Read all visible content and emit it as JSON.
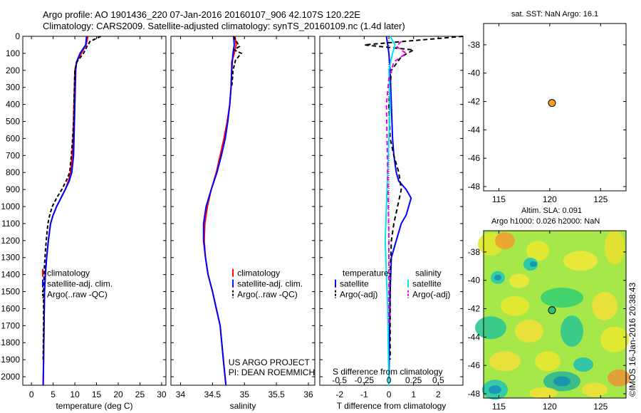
{
  "header": {
    "line1": "Argo profile: AO 1901436_220 07-Jan-2016 20160107_906 42.107S 120.22E",
    "line2": "Climatology: CARS2009. Satellite-adjusted climatology: synTS_20160109.nc (1.4d later)"
  },
  "colors": {
    "climatology": "#ff0000",
    "satellite": "#0000ff",
    "argo": "#000000",
    "cyan": "#00e5ee",
    "magenta": "#ee00ee",
    "marker": "#f4a020"
  },
  "chart_data": [
    {
      "id": "temperature",
      "type": "line",
      "xlabel": "temperature (deg C)",
      "ylabel": "",
      "xlim": [
        -2,
        31
      ],
      "ylim": [
        2050,
        0
      ],
      "xticks": [
        0,
        5,
        10,
        15,
        20,
        25,
        30
      ],
      "yticks": [
        0,
        100,
        200,
        300,
        400,
        500,
        600,
        700,
        800,
        900,
        1000,
        1100,
        1200,
        1300,
        1400,
        1500,
        1600,
        1700,
        1800,
        1900,
        2000
      ],
      "legend": [
        "climatology",
        "satellite-adj. clim.",
        "Argo(..raw -QC)"
      ],
      "series": [
        {
          "name": "climatology",
          "color": "#ff0000",
          "dash": "",
          "x": [
            13.0,
            12.6,
            11.5,
            10.4,
            10.0,
            9.9,
            9.8,
            9.7,
            9.6,
            9.4,
            9.0,
            8.5,
            7.8,
            6.8,
            5.8,
            5.0,
            4.4,
            3.9,
            3.5,
            3.2,
            3.0,
            2.9,
            2.8,
            2.7
          ],
          "y": [
            0,
            50,
            100,
            150,
            200,
            300,
            400,
            500,
            600,
            700,
            800,
            850,
            900,
            950,
            1000,
            1050,
            1100,
            1200,
            1300,
            1400,
            1500,
            1700,
            1900,
            2050
          ]
        },
        {
          "name": "satellite-adj. clim.",
          "color": "#0000ff",
          "dash": "",
          "x": [
            12.7,
            12.5,
            11.2,
            10.4,
            10.2,
            10.1,
            10.0,
            9.9,
            9.8,
            9.7,
            9.3,
            8.7,
            7.8,
            6.8,
            5.8,
            5.0,
            4.4,
            3.9,
            3.5,
            3.2,
            3.0,
            2.9,
            2.8,
            2.7
          ],
          "y": [
            0,
            50,
            100,
            150,
            200,
            300,
            400,
            500,
            600,
            700,
            800,
            850,
            900,
            950,
            1000,
            1050,
            1100,
            1200,
            1300,
            1400,
            1500,
            1700,
            1900,
            2050
          ]
        },
        {
          "name": "Argo(..raw -QC)",
          "color": "#000000",
          "dash": "5,3",
          "x": [
            16.0,
            13.5,
            12.8,
            12.0,
            10.5,
            10.0,
            9.9,
            9.8,
            9.7,
            9.5,
            9.2,
            8.8,
            8.0,
            7.0,
            5.8,
            4.8,
            4.2,
            3.8,
            3.4,
            3.1,
            2.9,
            2.8,
            2.8,
            2.7
          ],
          "y": [
            0,
            30,
            60,
            100,
            150,
            200,
            300,
            400,
            500,
            600,
            700,
            800,
            850,
            900,
            950,
            1000,
            1050,
            1100,
            1200,
            1300,
            1400,
            1500,
            1700,
            1900
          ]
        }
      ]
    },
    {
      "id": "salinity",
      "type": "line",
      "xlabel": "salinity",
      "ylabel": "",
      "xlim": [
        33.85,
        36.1
      ],
      "ylim": [
        2050,
        0
      ],
      "xticks": [
        34,
        34.5,
        35,
        35.5,
        36
      ],
      "legend": [
        "climatology",
        "satellite-adj. clim.",
        "Argo(..raw -QC)"
      ],
      "annotation": [
        "US ARGO PROJECT",
        "PI: DEAN ROEMMICH"
      ],
      "series": [
        {
          "name": "climatology",
          "color": "#ff0000",
          "dash": "",
          "x": [
            34.85,
            34.87,
            34.84,
            34.8,
            34.8,
            34.79,
            34.77,
            34.73,
            34.68,
            34.62,
            34.56,
            34.48,
            34.42,
            34.38,
            34.37,
            34.39,
            34.43,
            34.5,
            34.56,
            34.62,
            34.67,
            34.71
          ],
          "y": [
            0,
            50,
            100,
            150,
            200,
            300,
            400,
            500,
            600,
            700,
            800,
            900,
            1000,
            1100,
            1200,
            1300,
            1400,
            1500,
            1600,
            1700,
            1900,
            2050
          ]
        },
        {
          "name": "satellite-adj. clim.",
          "color": "#0000ff",
          "dash": "",
          "x": [
            34.83,
            34.84,
            34.82,
            34.81,
            34.8,
            34.79,
            34.77,
            34.74,
            34.7,
            34.64,
            34.57,
            34.48,
            34.4,
            34.36,
            34.36,
            34.39,
            34.43,
            34.5,
            34.56,
            34.62,
            34.67,
            34.71
          ],
          "y": [
            0,
            50,
            100,
            150,
            200,
            300,
            400,
            500,
            600,
            700,
            800,
            900,
            1000,
            1100,
            1200,
            1300,
            1400,
            1500,
            1600,
            1700,
            1900,
            2050
          ]
        },
        {
          "name": "Argo(..raw -QC)",
          "color": "#000000",
          "dash": "5,3",
          "x": [
            34.83,
            34.92,
            34.84,
            34.95,
            34.86,
            34.82,
            34.81,
            34.8
          ],
          "y": [
            0,
            60,
            80,
            100,
            140,
            200,
            260,
            300
          ]
        }
      ]
    },
    {
      "id": "difference",
      "type": "line",
      "xlabel": "T difference from climatology",
      "top_label": "S difference from climatology",
      "xlim": [
        -2.8,
        3.0
      ],
      "ylim": [
        2050,
        0
      ],
      "xticks": [
        -2,
        -1,
        0,
        1,
        2
      ],
      "top_ticks": [
        "-0.5",
        "-0.25",
        "0",
        "0.25",
        "0.5"
      ],
      "legend_headers": [
        "temperature",
        "salinity"
      ],
      "legend": [
        "satellite",
        "Argo(-adj)",
        "satellite",
        "Argo(-adj)"
      ],
      "series": [
        {
          "name": "temperature satellite",
          "color": "#0000ff",
          "dash": "",
          "x": [
            -0.1,
            0.0,
            0.05,
            0.1,
            0.15,
            0.2,
            0.3,
            0.4,
            0.7,
            0.9,
            0.8,
            0.7,
            0.5,
            0.3,
            0.1,
            0.05,
            0.0
          ],
          "y": [
            0,
            100,
            200,
            400,
            600,
            700,
            800,
            850,
            900,
            950,
            1000,
            1050,
            1100,
            1200,
            1300,
            1500,
            2050
          ]
        },
        {
          "name": "temperature Argo(-adj)",
          "color": "#000000",
          "dash": "6,4",
          "x": [
            3.0,
            -1.0,
            1.0,
            0.5,
            0.1,
            0.0,
            0.05,
            0.2,
            0.4,
            0.5,
            0.35,
            0.2,
            0.1,
            0.05,
            0.05,
            0.05
          ],
          "y": [
            0,
            50,
            80,
            120,
            200,
            400,
            600,
            700,
            800,
            900,
            1000,
            1100,
            1200,
            1400,
            1600,
            1900
          ]
        },
        {
          "name": "salinity satellite",
          "color": "#00e5ee",
          "dash": "",
          "x": [
            0.05,
            0.25,
            0.15,
            0.0,
            0.05,
            0.0,
            -0.05,
            -0.1,
            -0.15,
            -0.1,
            -0.05,
            0.0
          ],
          "y": [
            0,
            50,
            100,
            200,
            400,
            600,
            800,
            1000,
            1200,
            1400,
            1600,
            2050
          ]
        },
        {
          "name": "salinity Argo(-adj)",
          "color": "#ee00ee",
          "dash": "6,4",
          "x": [
            0.5,
            0.3,
            0.7,
            0.2,
            0.0,
            -0.1,
            -0.05,
            0.0,
            0.0
          ],
          "y": [
            30,
            60,
            100,
            150,
            250,
            400,
            800,
            1200,
            1700
          ]
        }
      ]
    },
    {
      "id": "sst-map",
      "type": "scatter",
      "title": "sat. SST: NaN Argo: 16.1",
      "xlim": [
        113.5,
        127.5
      ],
      "ylim": [
        -48.3,
        -36.5
      ],
      "xticks": [
        115,
        120,
        125
      ],
      "yticks": [
        -38,
        -40,
        -42,
        -44,
        -46,
        -48
      ],
      "points": [
        {
          "x": 120.22,
          "y": -42.107
        }
      ]
    },
    {
      "id": "sla-map",
      "type": "heatmap",
      "title_lines": [
        "Altim. SLA: 0.091",
        "Argo h1000: 0.026 h2000: NaN"
      ],
      "xlim": [
        113.5,
        127.5
      ],
      "ylim": [
        -48.3,
        -36.5
      ],
      "xticks": [
        115,
        120,
        125
      ],
      "yticks": [
        -38,
        -40,
        -42,
        -44,
        -46,
        -48
      ],
      "points": [
        {
          "x": 120.22,
          "y": -42.107
        }
      ],
      "side_text": "©IMOS 16-Jan-2016 20:38:43"
    }
  ]
}
